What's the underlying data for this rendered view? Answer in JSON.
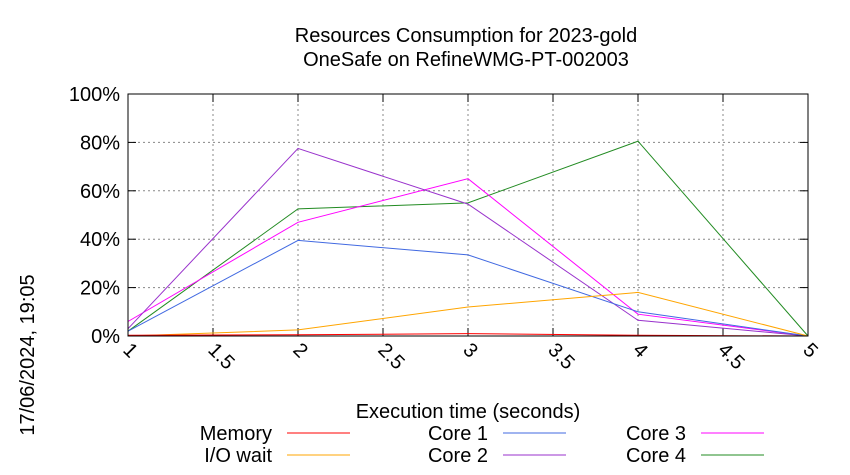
{
  "chart_data": {
    "type": "line",
    "title": "Resources Consumption for 2023-gold",
    "subtitle": "OneSafe on RefineWMG-PT-002003",
    "xlabel": "Execution time (seconds)",
    "ylabel": "",
    "side_label": "17/06/2024, 19:05",
    "xlim": [
      1,
      5
    ],
    "ylim": [
      0,
      100
    ],
    "x_ticks": [
      1,
      1.5,
      2,
      2.5,
      3,
      3.5,
      4,
      4.5,
      5
    ],
    "x_tick_labels": [
      "1",
      "1.5",
      "2",
      "2.5",
      "3",
      "3.5",
      "4",
      "4.5",
      "5"
    ],
    "y_ticks": [
      0,
      20,
      40,
      60,
      80,
      100
    ],
    "y_tick_labels": [
      "0%",
      "20%",
      "40%",
      "60%",
      "80%",
      "100%"
    ],
    "grid": true,
    "legend_position": "bottom",
    "x": [
      1,
      2,
      3,
      4,
      5
    ],
    "series": [
      {
        "name": "Memory",
        "color": "#ff0000",
        "values": [
          0.3,
          0.5,
          1,
          0.3,
          0
        ]
      },
      {
        "name": "I/O wait",
        "color": "#ffa500",
        "values": [
          0,
          2.5,
          12,
          18,
          0
        ]
      },
      {
        "name": "Core 1",
        "color": "#4169e1",
        "values": [
          2,
          39.5,
          33.5,
          10,
          0
        ]
      },
      {
        "name": "Core 2",
        "color": "#9932cc",
        "values": [
          3,
          77.5,
          54.5,
          6.5,
          0
        ]
      },
      {
        "name": "Core 3",
        "color": "#ff00ff",
        "values": [
          6,
          47,
          65,
          9,
          0
        ]
      },
      {
        "name": "Core 4",
        "color": "#228b22",
        "values": [
          2,
          52.5,
          55,
          80.5,
          0
        ]
      }
    ]
  }
}
